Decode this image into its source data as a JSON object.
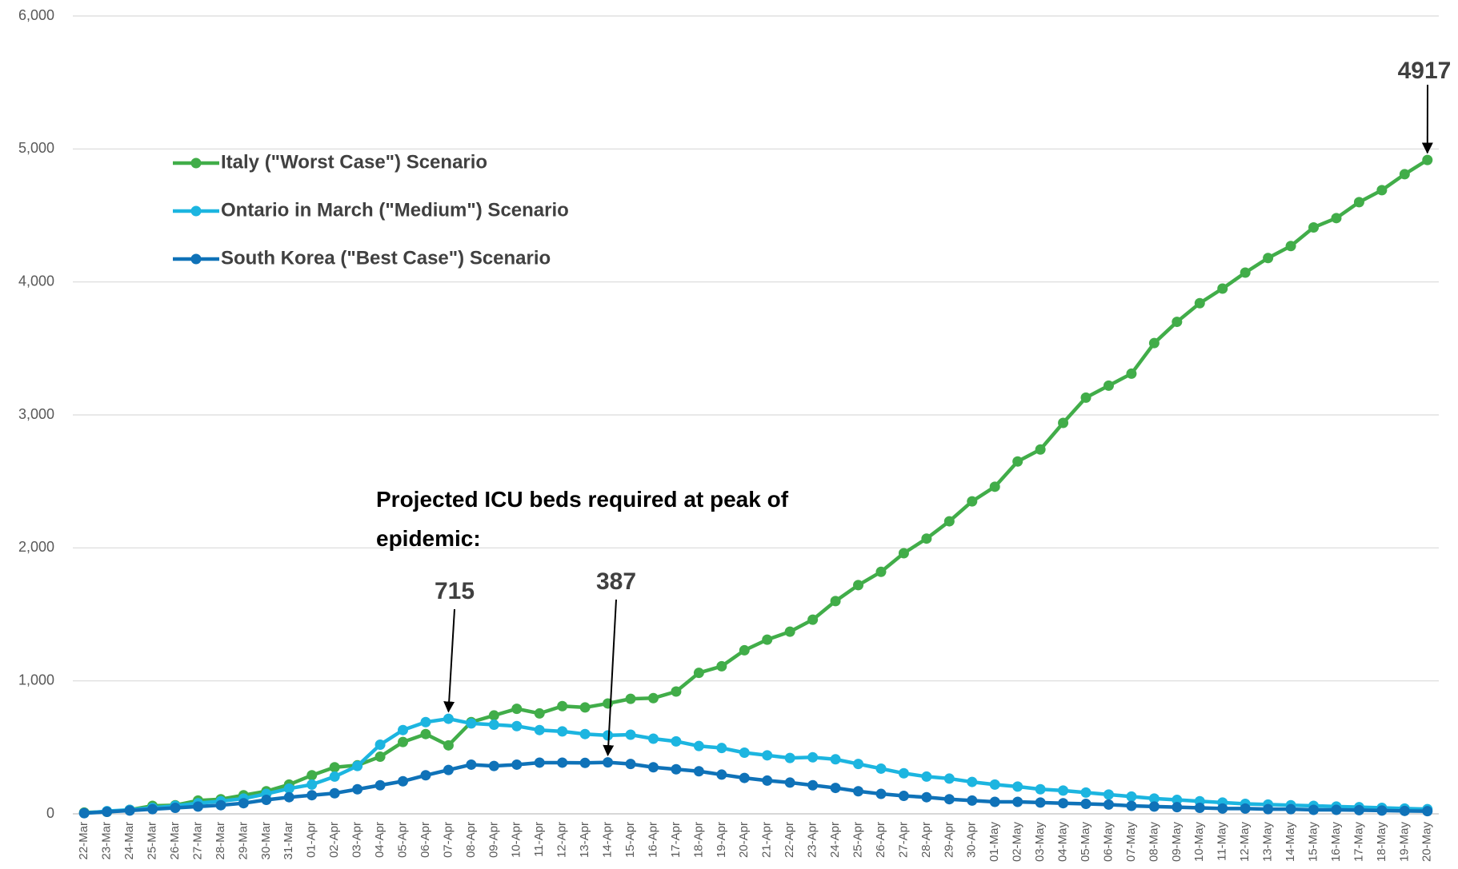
{
  "chart_data": {
    "type": "line",
    "categories": [
      "22-Mar",
      "23-Mar",
      "24-Mar",
      "25-Mar",
      "26-Mar",
      "27-Mar",
      "28-Mar",
      "29-Mar",
      "30-Mar",
      "31-Mar",
      "01-Apr",
      "02-Apr",
      "03-Apr",
      "04-Apr",
      "05-Apr",
      "06-Apr",
      "07-Apr",
      "08-Apr",
      "09-Apr",
      "10-Apr",
      "11-Apr",
      "12-Apr",
      "13-Apr",
      "14-Apr",
      "15-Apr",
      "16-Apr",
      "17-Apr",
      "18-Apr",
      "19-Apr",
      "20-Apr",
      "21-Apr",
      "22-Apr",
      "23-Apr",
      "24-Apr",
      "25-Apr",
      "26-Apr",
      "27-Apr",
      "28-Apr",
      "29-Apr",
      "30-Apr",
      "01-May",
      "02-May",
      "03-May",
      "04-May",
      "05-May",
      "06-May",
      "07-May",
      "08-May",
      "09-May",
      "10-May",
      "11-May",
      "12-May",
      "13-May",
      "14-May",
      "15-May",
      "16-May",
      "17-May",
      "18-May",
      "19-May",
      "20-May"
    ],
    "series": [
      {
        "name": "Italy (\"Worst Case\") Scenario",
        "color": "#41ad49",
        "values": [
          10,
          15,
          30,
          60,
          65,
          100,
          110,
          140,
          170,
          220,
          290,
          350,
          365,
          430,
          540,
          600,
          515,
          690,
          740,
          790,
          755,
          810,
          800,
          830,
          865,
          870,
          920,
          1060,
          1110,
          1230,
          1310,
          1370,
          1460,
          1600,
          1720,
          1820,
          1960,
          2070,
          2200,
          2350,
          2460,
          2650,
          2740,
          2940,
          3130,
          3220,
          3310,
          3540,
          3700,
          3840,
          3950,
          4070,
          4180,
          4270,
          4410,
          4480,
          4600,
          4690,
          4810,
          4917
        ]
      },
      {
        "name": "Ontario in March (\"Medium\") Scenario",
        "color": "#1cb5e0",
        "values": [
          5,
          20,
          30,
          45,
          60,
          80,
          95,
          115,
          150,
          190,
          220,
          280,
          360,
          520,
          630,
          690,
          715,
          680,
          670,
          660,
          630,
          620,
          600,
          590,
          595,
          565,
          545,
          510,
          495,
          460,
          440,
          420,
          425,
          410,
          375,
          340,
          305,
          280,
          265,
          240,
          220,
          205,
          185,
          175,
          160,
          145,
          130,
          115,
          105,
          95,
          85,
          75,
          70,
          65,
          60,
          55,
          50,
          45,
          40,
          35
        ]
      },
      {
        "name": "South Korea (\"Best Case\") Scenario",
        "color": "#0f72b8",
        "values": [
          5,
          15,
          25,
          35,
          45,
          55,
          65,
          80,
          105,
          125,
          140,
          155,
          185,
          215,
          245,
          290,
          330,
          370,
          360,
          370,
          385,
          385,
          383,
          387,
          375,
          350,
          335,
          320,
          295,
          270,
          250,
          235,
          215,
          195,
          170,
          150,
          135,
          125,
          110,
          100,
          90,
          90,
          85,
          80,
          75,
          70,
          60,
          55,
          50,
          45,
          40,
          40,
          35,
          35,
          30,
          30,
          28,
          25,
          22,
          20
        ]
      }
    ],
    "ylim": [
      0,
      6000
    ],
    "yticks": [
      0,
      {
        "value": 1000,
        "label": "1,000"
      },
      {
        "value": 2000,
        "label": "2,000"
      },
      {
        "value": 3000,
        "label": "3,000"
      },
      {
        "value": 4000,
        "label": "4,000"
      },
      {
        "value": 5000,
        "label": "5,000"
      },
      {
        "value": 6000,
        "label": "6,000"
      }
    ],
    "grid": true,
    "annotations": [
      {
        "text": "Projected ICU beds required at peak of epidemic:"
      },
      {
        "text": "715"
      },
      {
        "text": "387"
      },
      {
        "text": "4917"
      }
    ]
  }
}
